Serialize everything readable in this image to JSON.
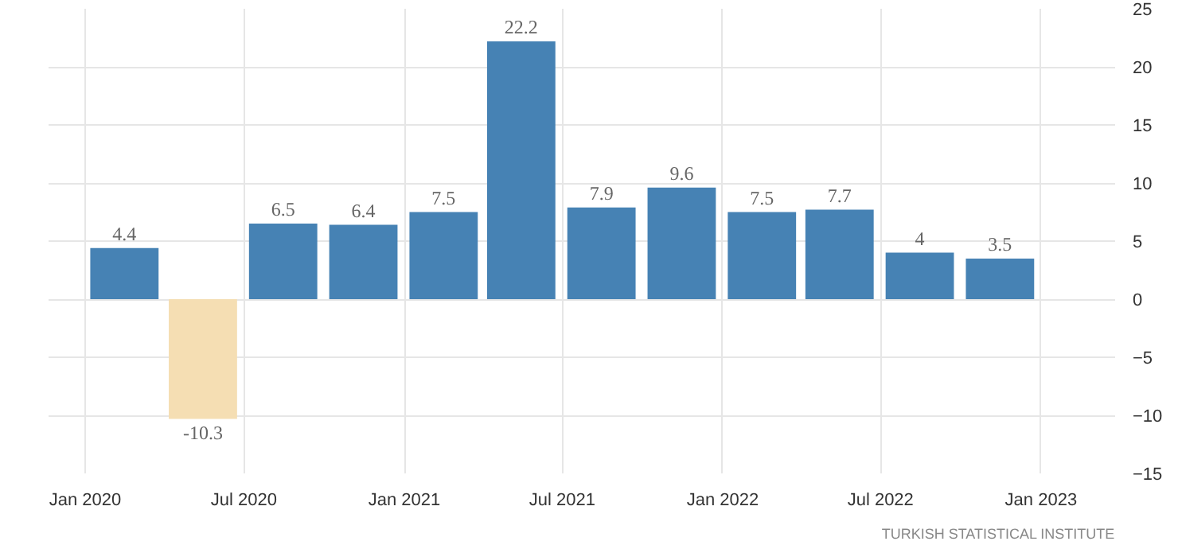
{
  "chart_data": {
    "type": "bar",
    "x": [
      "2020-02-15",
      "2020-05-15",
      "2020-08-15",
      "2020-11-15",
      "2021-02-15",
      "2021-05-15",
      "2021-08-15",
      "2021-11-15",
      "2022-02-15",
      "2022-05-15",
      "2022-08-15",
      "2022-11-15"
    ],
    "values": [
      4.4,
      -10.3,
      6.5,
      6.4,
      7.5,
      22.2,
      7.9,
      9.6,
      7.5,
      7.7,
      4,
      3.5
    ],
    "colors": [
      "#4682b4",
      "#f5deb3",
      "#4682b4",
      "#4682b4",
      "#4682b4",
      "#4682b4",
      "#4682b4",
      "#4682b4",
      "#4682b4",
      "#4682b4",
      "#4682b4",
      "#4682b4"
    ],
    "data_labels": true,
    "xlim": [
      "2019-11-20",
      "2023-03-27"
    ],
    "xticks": [
      {
        "value": "2020-01-01",
        "label": "Jan 2020"
      },
      {
        "value": "2020-07-01",
        "label": "Jul 2020"
      },
      {
        "value": "2021-01-01",
        "label": "Jan 2021"
      },
      {
        "value": "2021-07-01",
        "label": "Jul 2021"
      },
      {
        "value": "2022-01-01",
        "label": "Jan 2022"
      },
      {
        "value": "2022-07-01",
        "label": "Jul 2022"
      },
      {
        "value": "2023-01-01",
        "label": "Jan 2023"
      }
    ],
    "ylim": [
      -15,
      25
    ],
    "yticks": [
      -15,
      -10,
      -5,
      0,
      5,
      10,
      15,
      20,
      25
    ],
    "grid": true,
    "annotations": [
      "TURKISH STATISTICAL INSTITUTE"
    ]
  }
}
